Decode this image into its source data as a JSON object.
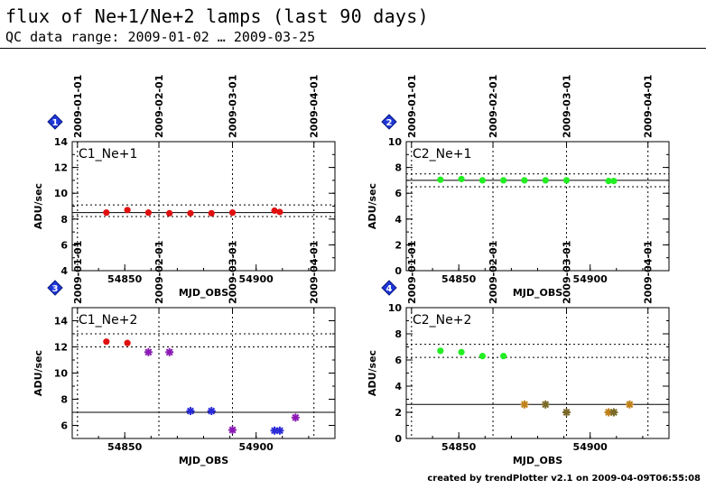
{
  "header": {
    "title": "flux of Ne+1/Ne+2 lamps (last 90 days)",
    "subtitle": "QC data range: 2009-01-02 … 2009-03-25"
  },
  "footer": "created by trendPlotter v2.1 on 2009-04-09T06:55:08",
  "colors": {
    "red": "#e01010",
    "green": "#22ee22",
    "purple_marker": "#8a1ab4",
    "blue_star": "#2a2ad8",
    "orange_marker": "#c0801a",
    "olive_marker": "#7a6a28",
    "badge": "#1f37d8"
  },
  "top_axis_dates": [
    "2009-01-01",
    "2009-02-01",
    "2009-03-01",
    "2009-04-01"
  ],
  "chart_data": [
    {
      "id": 1,
      "badge": "1",
      "type": "scatter",
      "label": "C1_Ne+1",
      "xlabel": "MJD_OBS",
      "ylabel": "ADU/sec",
      "xlim": [
        54830,
        54930
      ],
      "ylim": [
        4,
        14
      ],
      "yticks": [
        4,
        6,
        8,
        10,
        12,
        14
      ],
      "xticks": [
        54850,
        54900
      ],
      "date_lines_mjd": [
        54832,
        54863,
        54891,
        54922
      ],
      "ref_line": 8.5,
      "band": [
        8.2,
        9.1
      ],
      "points": [
        {
          "x": 54843,
          "y": 8.5,
          "marker": "dot",
          "color": "red"
        },
        {
          "x": 54851,
          "y": 8.7,
          "marker": "dot",
          "color": "red"
        },
        {
          "x": 54859,
          "y": 8.5,
          "marker": "dot",
          "color": "red"
        },
        {
          "x": 54867,
          "y": 8.45,
          "marker": "dot",
          "color": "red"
        },
        {
          "x": 54875,
          "y": 8.45,
          "marker": "dot",
          "color": "red"
        },
        {
          "x": 54883,
          "y": 8.45,
          "marker": "dot",
          "color": "red"
        },
        {
          "x": 54891,
          "y": 8.5,
          "marker": "dot",
          "color": "red"
        },
        {
          "x": 54907,
          "y": 8.65,
          "marker": "dot",
          "color": "red"
        },
        {
          "x": 54909,
          "y": 8.55,
          "marker": "dot",
          "color": "red"
        }
      ]
    },
    {
      "id": 2,
      "badge": "2",
      "type": "scatter",
      "label": "C2_Ne+1",
      "xlabel": "MJD_OBS",
      "ylabel": "ADU/sec",
      "xlim": [
        54830,
        54930
      ],
      "ylim": [
        0,
        10
      ],
      "yticks": [
        0,
        2,
        4,
        6,
        8,
        10
      ],
      "xticks": [
        54850,
        54900
      ],
      "date_lines_mjd": [
        54832,
        54863,
        54891,
        54922
      ],
      "ref_line": 7.0,
      "band": [
        6.5,
        7.5
      ],
      "points": [
        {
          "x": 54843,
          "y": 7.05,
          "marker": "dot",
          "color": "green"
        },
        {
          "x": 54851,
          "y": 7.1,
          "marker": "dot",
          "color": "green"
        },
        {
          "x": 54859,
          "y": 7.0,
          "marker": "dot",
          "color": "green"
        },
        {
          "x": 54867,
          "y": 7.0,
          "marker": "dot",
          "color": "green"
        },
        {
          "x": 54875,
          "y": 7.0,
          "marker": "dot",
          "color": "green"
        },
        {
          "x": 54883,
          "y": 7.0,
          "marker": "dot",
          "color": "green"
        },
        {
          "x": 54891,
          "y": 7.0,
          "marker": "dot",
          "color": "green"
        },
        {
          "x": 54907,
          "y": 6.95,
          "marker": "dot",
          "color": "green"
        },
        {
          "x": 54909,
          "y": 6.95,
          "marker": "dot",
          "color": "green"
        }
      ]
    },
    {
      "id": 3,
      "badge": "3",
      "type": "scatter",
      "label": "C1_Ne+2",
      "xlabel": "MJD_OBS",
      "ylabel": "ADU/sec",
      "xlim": [
        54830,
        54930
      ],
      "ylim": [
        5,
        15
      ],
      "yticks": [
        6,
        8,
        10,
        12,
        14
      ],
      "xticks": [
        54850,
        54900
      ],
      "date_lines_mjd": [
        54832,
        54863,
        54891,
        54922
      ],
      "ref_line": 7.0,
      "band": [
        12.0,
        13.0
      ],
      "points": [
        {
          "x": 54843,
          "y": 12.4,
          "marker": "dot",
          "color": "red"
        },
        {
          "x": 54851,
          "y": 12.3,
          "marker": "dot",
          "color": "red"
        },
        {
          "x": 54859,
          "y": 11.6,
          "marker": "star",
          "color": "purple_marker"
        },
        {
          "x": 54867,
          "y": 11.6,
          "marker": "star",
          "color": "purple_marker"
        },
        {
          "x": 54875,
          "y": 7.1,
          "marker": "star",
          "color": "blue_star"
        },
        {
          "x": 54883,
          "y": 7.1,
          "marker": "star",
          "color": "blue_star"
        },
        {
          "x": 54891,
          "y": 5.65,
          "marker": "star",
          "color": "purple_marker"
        },
        {
          "x": 54907,
          "y": 5.6,
          "marker": "star",
          "color": "blue_star"
        },
        {
          "x": 54909,
          "y": 5.6,
          "marker": "star",
          "color": "blue_star"
        },
        {
          "x": 54915,
          "y": 6.6,
          "marker": "star",
          "color": "purple_marker"
        }
      ]
    },
    {
      "id": 4,
      "badge": "4",
      "type": "scatter",
      "label": "C2_Ne+2",
      "xlabel": "MJD_OBS",
      "ylabel": "ADU/sec",
      "xlim": [
        54830,
        54930
      ],
      "ylim": [
        0,
        10
      ],
      "yticks": [
        0,
        2,
        4,
        6,
        8,
        10
      ],
      "xticks": [
        54850,
        54900
      ],
      "date_lines_mjd": [
        54832,
        54863,
        54891,
        54922
      ],
      "ref_line": 2.6,
      "band": [
        6.2,
        7.2
      ],
      "points": [
        {
          "x": 54843,
          "y": 6.7,
          "marker": "dot",
          "color": "green"
        },
        {
          "x": 54851,
          "y": 6.6,
          "marker": "dot",
          "color": "green"
        },
        {
          "x": 54859,
          "y": 6.3,
          "marker": "dot",
          "color": "green"
        },
        {
          "x": 54867,
          "y": 6.3,
          "marker": "dot",
          "color": "green"
        },
        {
          "x": 54875,
          "y": 2.6,
          "marker": "star",
          "color": "orange_marker"
        },
        {
          "x": 54883,
          "y": 2.6,
          "marker": "star",
          "color": "olive_marker"
        },
        {
          "x": 54891,
          "y": 2.0,
          "marker": "star",
          "color": "olive_marker"
        },
        {
          "x": 54907,
          "y": 2.0,
          "marker": "star",
          "color": "orange_marker"
        },
        {
          "x": 54909,
          "y": 2.0,
          "marker": "star",
          "color": "olive_marker"
        },
        {
          "x": 54915,
          "y": 2.6,
          "marker": "star",
          "color": "orange_marker"
        }
      ]
    }
  ]
}
